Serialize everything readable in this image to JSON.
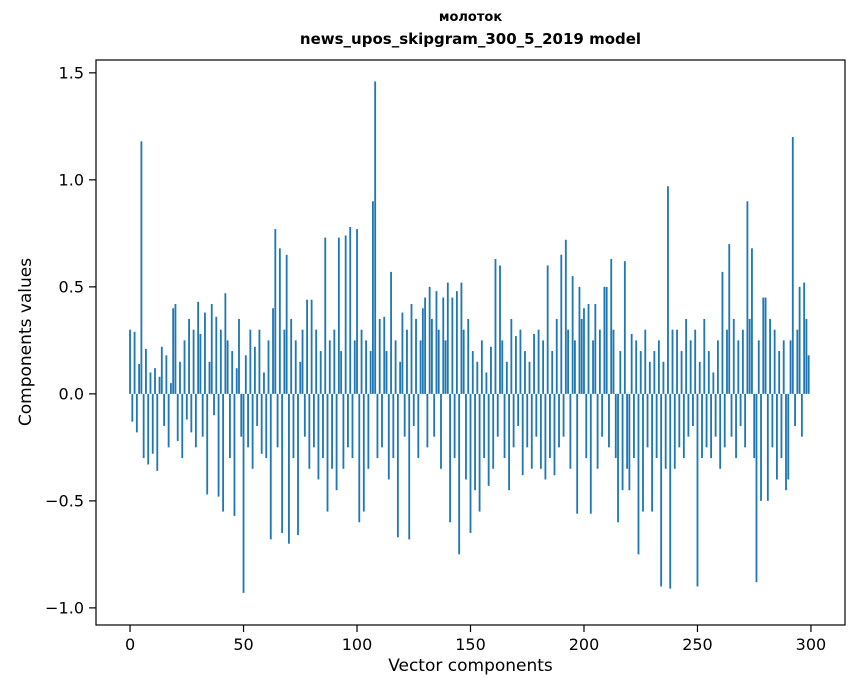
{
  "chart_data": {
    "type": "bar",
    "title": "молоток",
    "subtitle": "news_upos_skipgram_300_5_2019 model",
    "xlabel": "Vector components",
    "ylabel": "Components values",
    "xlim": [
      -15,
      315
    ],
    "ylim": [
      -1.08,
      1.56
    ],
    "x_ticks": [
      0,
      50,
      100,
      150,
      200,
      250,
      300
    ],
    "y_ticks": [
      -1.0,
      -0.5,
      0.0,
      0.5,
      1.0,
      1.5
    ],
    "y_tick_labels": [
      "−1.0",
      "−0.5",
      "0.0",
      "0.5",
      "1.0",
      "1.5"
    ],
    "bar_color": "#1f77b4",
    "grid": false,
    "legend": null,
    "n_components": 300,
    "values": [
      0.3,
      -0.13,
      0.29,
      -0.18,
      0.14,
      1.18,
      -0.3,
      0.21,
      -0.33,
      0.1,
      -0.28,
      0.12,
      -0.36,
      0.08,
      0.22,
      -0.15,
      0.18,
      -0.25,
      0.05,
      0.4,
      0.42,
      -0.22,
      0.15,
      -0.3,
      0.25,
      -0.12,
      0.35,
      -0.18,
      0.3,
      -0.25,
      0.43,
      0.28,
      -0.2,
      0.38,
      -0.47,
      0.15,
      0.42,
      -0.1,
      0.36,
      -0.48,
      0.3,
      -0.55,
      0.47,
      0.25,
      -0.3,
      0.2,
      -0.57,
      0.12,
      0.35,
      -0.2,
      -0.93,
      0.18,
      -0.25,
      0.3,
      -0.35,
      0.22,
      -0.15,
      0.3,
      -0.28,
      0.1,
      -0.3,
      0.25,
      -0.68,
      0.4,
      0.77,
      -0.25,
      0.68,
      -0.65,
      0.3,
      0.65,
      -0.7,
      0.35,
      -0.3,
      0.25,
      -0.66,
      0.15,
      0.3,
      -0.2,
      0.44,
      -0.35,
      0.44,
      -0.25,
      0.3,
      -0.4,
      0.2,
      -0.3,
      0.73,
      -0.55,
      0.25,
      -0.35,
      0.3,
      -0.45,
      0.73,
      0.2,
      -0.35,
      0.74,
      -0.25,
      0.78,
      -0.3,
      0.25,
      0.77,
      -0.6,
      0.3,
      -0.55,
      0.25,
      -0.35,
      0.2,
      0.9,
      1.46,
      -0.3,
      0.35,
      -0.25,
      0.36,
      0.2,
      -0.4,
      0.57,
      -0.3,
      0.25,
      -0.67,
      0.15,
      0.38,
      -0.2,
      0.3,
      -0.68,
      0.42,
      -0.15,
      0.35,
      -0.3,
      0.25,
      0.4,
      0.45,
      -0.25,
      0.5,
      0.35,
      -0.2,
      0.48,
      0.3,
      -0.35,
      0.45,
      0.25,
      0.52,
      -0.6,
      0.45,
      -0.3,
      0.48,
      -0.75,
      0.52,
      0.3,
      -0.4,
      0.35,
      -0.65,
      0.2,
      -0.45,
      0.15,
      -0.55,
      0.25,
      -0.3,
      0.1,
      -0.43,
      0.22,
      -0.35,
      0.63,
      -0.2,
      0.6,
      0.25,
      -0.3,
      0.15,
      -0.45,
      0.35,
      -0.25,
      0.27,
      -0.15,
      0.3,
      -0.38,
      0.2,
      -0.25,
      0.15,
      -0.35,
      0.28,
      -0.2,
      0.3,
      -0.35,
      0.25,
      -0.4,
      0.6,
      -0.3,
      0.2,
      -0.38,
      0.35,
      -0.25,
      0.65,
      -0.2,
      0.72,
      0.3,
      -0.35,
      0.55,
      0.25,
      -0.56,
      0.5,
      0.35,
      0.4,
      -0.3,
      0.42,
      -0.56,
      0.25,
      0.42,
      -0.35,
      0.3,
      -0.2,
      0.5,
      0.5,
      -0.25,
      0.63,
      0.3,
      -0.3,
      -0.6,
      0.2,
      -0.45,
      0.62,
      -0.35,
      -0.45,
      0.28,
      -0.3,
      0.25,
      -0.75,
      0.2,
      -0.55,
      0.3,
      -0.25,
      0.15,
      -0.55,
      0.2,
      -0.3,
      0.25,
      -0.9,
      0.15,
      -0.35,
      0.97,
      -0.91,
      0.3,
      -0.35,
      0.3,
      -0.25,
      0.2,
      -0.3,
      0.35,
      -0.2,
      0.25,
      -0.15,
      0.3,
      -0.9,
      0.15,
      -0.3,
      0.35,
      -0.25,
      0.2,
      -0.3,
      0.1,
      -0.2,
      0.25,
      -0.35,
      0.57,
      -0.25,
      0.3,
      0.7,
      -0.2,
      0.35,
      -0.3,
      0.25,
      -0.15,
      0.3,
      -0.25,
      0.9,
      0.35,
      0.68,
      -0.3,
      -0.88,
      0.25,
      -0.5,
      0.45,
      0.45,
      -0.5,
      0.35,
      -0.25,
      0.3,
      -0.4,
      0.2,
      -0.3,
      0.25,
      -0.45,
      -0.4,
      0.25,
      1.2,
      -0.15,
      0.3,
      0.5,
      -0.2,
      0.52,
      0.35,
      0.18
    ]
  }
}
